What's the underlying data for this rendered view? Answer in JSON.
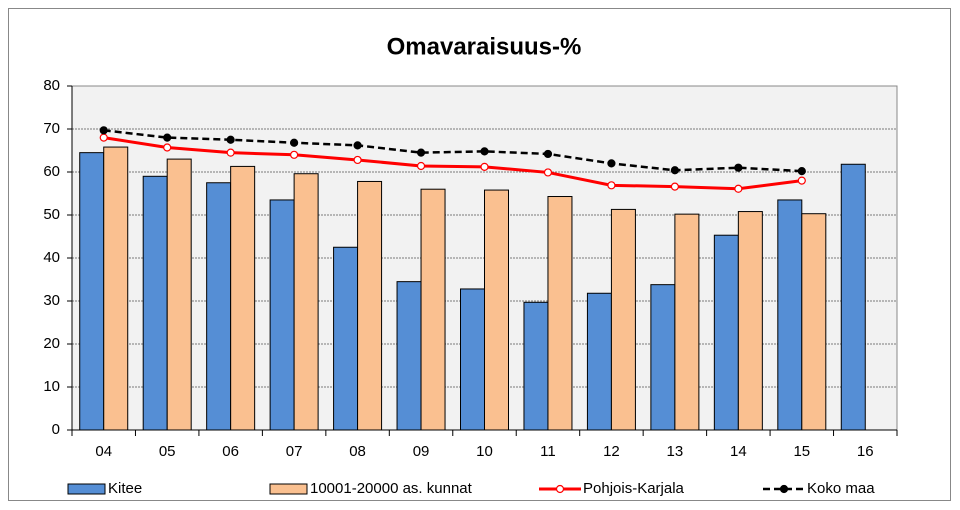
{
  "chart_data": {
    "type": "bar",
    "title": "Omavaraisuus-%",
    "categories": [
      "04",
      "05",
      "06",
      "07",
      "08",
      "09",
      "10",
      "11",
      "12",
      "13",
      "14",
      "15",
      "16"
    ],
    "series": [
      {
        "name": "Kitee",
        "type": "bar",
        "color": "#558ed5",
        "values": [
          64.5,
          59,
          57.5,
          53.5,
          42.5,
          34.5,
          32.8,
          29.7,
          31.8,
          33.8,
          45.3,
          53.5,
          61.8
        ]
      },
      {
        "name": "10001-20000 as. kunnat",
        "type": "bar",
        "color": "#fac090",
        "values": [
          65.8,
          63,
          61.3,
          59.6,
          57.8,
          56,
          55.8,
          54.3,
          51.3,
          50.2,
          50.8,
          50.3,
          null
        ]
      },
      {
        "name": "Pohjois-Karjala",
        "type": "line",
        "color": "#ff0000",
        "marker_fill": "#ffffff",
        "dashed": false,
        "values": [
          68,
          65.7,
          64.5,
          64,
          62.8,
          61.4,
          61.2,
          59.9,
          56.9,
          56.6,
          56.1,
          58,
          null
        ]
      },
      {
        "name": "Koko maa",
        "type": "line",
        "color": "#000000",
        "marker_fill": "#000000",
        "dashed": true,
        "values": [
          69.7,
          68,
          67.5,
          66.8,
          66.2,
          64.5,
          64.8,
          64.2,
          62,
          60.4,
          61,
          60.2,
          null
        ]
      }
    ],
    "ylim": [
      0,
      80
    ],
    "yticks": [
      0,
      10,
      20,
      30,
      40,
      50,
      60,
      70,
      80
    ],
    "grid": true,
    "legend": "bottom"
  }
}
